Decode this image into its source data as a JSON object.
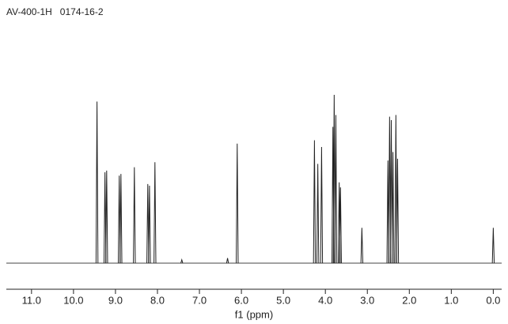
{
  "chart_data": {
    "type": "spectrum",
    "title": "AV-400-1H   0174-16-2",
    "x_label": "f1 (ppm)",
    "color": "#222222",
    "x": [
      9.44,
      9.25,
      9.21,
      8.91,
      8.87,
      8.55,
      8.23,
      8.19,
      8.06,
      7.42,
      6.33,
      6.1,
      4.26,
      4.18,
      4.09,
      3.82,
      3.79,
      3.75,
      3.67,
      3.64,
      3.13,
      2.51,
      2.47,
      2.43,
      2.39,
      2.32,
      2.28,
      0.0
    ],
    "values": [
      96,
      54,
      55,
      52,
      53,
      57,
      47,
      46,
      60,
      2,
      3,
      71,
      73,
      59,
      69,
      81,
      100,
      88,
      48,
      45,
      21,
      61,
      87,
      85,
      66,
      88,
      62,
      21
    ],
    "xlim": [
      11.6,
      -0.2
    ],
    "ylim": [
      0,
      100
    ],
    "xticks": [
      {
        "value": 11,
        "label": "11.0"
      },
      {
        "value": 10,
        "label": "10.0"
      },
      {
        "value": 9,
        "label": "9.0"
      },
      {
        "value": 8,
        "label": "8.0"
      },
      {
        "value": 7,
        "label": "7.0"
      },
      {
        "value": 6,
        "label": "6.0"
      },
      {
        "value": 5,
        "label": "5.0"
      },
      {
        "value": 4,
        "label": "4.0"
      },
      {
        "value": 3,
        "label": "3.0"
      },
      {
        "value": 2,
        "label": "2.0"
      },
      {
        "value": 1,
        "label": "1.0"
      },
      {
        "value": 0,
        "label": "0.0"
      }
    ]
  }
}
